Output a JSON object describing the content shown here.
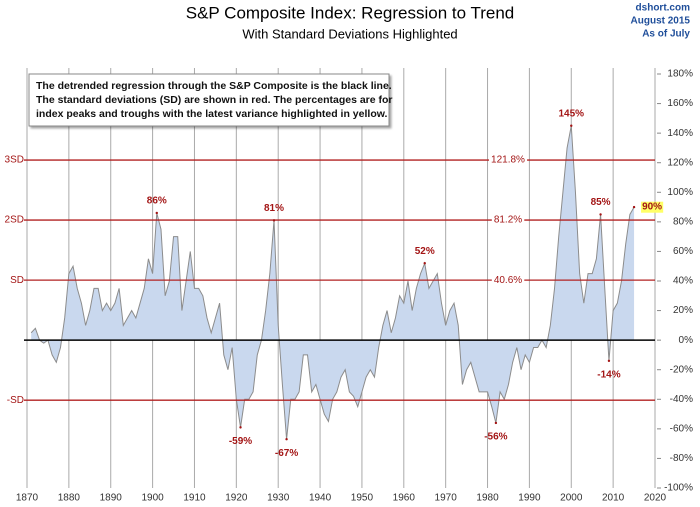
{
  "chart_data": {
    "type": "area",
    "title": "S&P Composite Index: Regression to Trend",
    "subtitle": "With Standard Deviations Highlighted",
    "source": [
      "dshort.com",
      "August 2015",
      "As of July"
    ],
    "note": [
      "The detrended regression through the S&P Composite is the black line.",
      "The standard deviations (SD) are shown in red.  The percentages are for",
      "index peaks and troughs with the latest variance highlighted in yellow."
    ],
    "color": "#c9d8ee",
    "line_color": "#8c8c8c",
    "x": [
      1871,
      1872,
      1873,
      1874,
      1875,
      1876,
      1877,
      1878,
      1879,
      1880,
      1881,
      1882,
      1883,
      1884,
      1885,
      1886,
      1887,
      1888,
      1889,
      1890,
      1891,
      1892,
      1893,
      1894,
      1895,
      1896,
      1897,
      1898,
      1899,
      1900,
      1901,
      1902,
      1903,
      1904,
      1905,
      1906,
      1907,
      1908,
      1909,
      1910,
      1911,
      1912,
      1913,
      1914,
      1915,
      1916,
      1917,
      1918,
      1919,
      1920,
      1921,
      1922,
      1923,
      1924,
      1925,
      1926,
      1927,
      1928,
      1929,
      1930,
      1931,
      1932,
      1933,
      1934,
      1935,
      1936,
      1937,
      1938,
      1939,
      1940,
      1941,
      1942,
      1943,
      1944,
      1945,
      1946,
      1947,
      1948,
      1949,
      1950,
      1951,
      1952,
      1953,
      1954,
      1955,
      1956,
      1957,
      1958,
      1959,
      1960,
      1961,
      1962,
      1963,
      1964,
      1965,
      1966,
      1967,
      1968,
      1969,
      1970,
      1971,
      1972,
      1973,
      1974,
      1975,
      1976,
      1977,
      1978,
      1979,
      1980,
      1981,
      1982,
      1983,
      1984,
      1985,
      1986,
      1987,
      1988,
      1989,
      1990,
      1991,
      1992,
      1993,
      1994,
      1995,
      1996,
      1997,
      1998,
      1999,
      2000,
      2001,
      2002,
      2003,
      2004,
      2005,
      2006,
      2007,
      2008,
      2009,
      2010,
      2011,
      2012,
      2013,
      2014,
      2015
    ],
    "values": [
      5,
      8,
      0,
      -2,
      0,
      -10,
      -15,
      -5,
      15,
      45,
      50,
      35,
      25,
      10,
      20,
      35,
      35,
      20,
      25,
      20,
      25,
      35,
      10,
      15,
      20,
      15,
      25,
      35,
      55,
      45,
      86,
      75,
      30,
      40,
      70,
      70,
      20,
      40,
      60,
      35,
      35,
      30,
      15,
      5,
      15,
      25,
      -10,
      -20,
      -5,
      -40,
      -59,
      -40,
      -40,
      -35,
      -10,
      0,
      20,
      45,
      81,
      10,
      -30,
      -67,
      -40,
      -40,
      -35,
      -10,
      -10,
      -35,
      -30,
      -40,
      -50,
      -55,
      -40,
      -35,
      -25,
      -20,
      -35,
      -38,
      -45,
      -35,
      -25,
      -20,
      -25,
      -5,
      10,
      20,
      5,
      15,
      30,
      25,
      40,
      20,
      35,
      45,
      52,
      35,
      40,
      45,
      25,
      10,
      20,
      25,
      10,
      -30,
      -20,
      -15,
      -25,
      -35,
      -35,
      -35,
      -45,
      -56,
      -35,
      -40,
      -30,
      -15,
      -5,
      -20,
      -10,
      -15,
      -5,
      -5,
      0,
      -5,
      10,
      35,
      70,
      100,
      130,
      145,
      100,
      45,
      25,
      45,
      45,
      55,
      85,
      35,
      -14,
      20,
      25,
      40,
      65,
      85,
      90
    ],
    "xlim": [
      1870,
      2020
    ],
    "xticks": [
      1870,
      1880,
      1890,
      1900,
      1910,
      1920,
      1930,
      1940,
      1950,
      1960,
      1970,
      1980,
      1990,
      2000,
      2010,
      2020
    ],
    "ylim": [
      -100,
      180
    ],
    "yticks": [
      {
        "value": 180,
        "label": "180%"
      },
      {
        "value": 160,
        "label": "160%"
      },
      {
        "value": 140,
        "label": "140%"
      },
      {
        "value": 120,
        "label": "120%"
      },
      {
        "value": 100,
        "label": "100%"
      },
      {
        "value": 80,
        "label": "80%"
      },
      {
        "value": 60,
        "label": "60%"
      },
      {
        "value": 40,
        "label": "40%"
      },
      {
        "value": 20,
        "label": "20%"
      },
      {
        "value": 0,
        "label": "0%"
      },
      {
        "value": -20,
        "label": "-20%"
      },
      {
        "value": -40,
        "label": "-40%"
      },
      {
        "value": -60,
        "label": "-60%"
      },
      {
        "value": -80,
        "label": "-80%"
      },
      {
        "value": -100,
        "label": "-100%"
      }
    ],
    "reference_lines": [
      {
        "value": 121.8,
        "label": "3SD",
        "value_label": "121.8%"
      },
      {
        "value": 81.2,
        "label": "2SD",
        "value_label": "81.2%"
      },
      {
        "value": 40.6,
        "label": "SD",
        "value_label": "40.6%"
      },
      {
        "value": -40.6,
        "label": "-SD"
      }
    ],
    "annotations": [
      {
        "x": 1901,
        "value": 86,
        "label": "86%"
      },
      {
        "x": 1929,
        "value": 81,
        "label": "81%"
      },
      {
        "x": 1965,
        "value": 52,
        "label": "52%"
      },
      {
        "x": 2000,
        "value": 145,
        "label": "145%"
      },
      {
        "x": 2007,
        "value": 85,
        "label": "85%"
      },
      {
        "x": 2015,
        "value": 90,
        "label": "90%",
        "highlight": "#ffff66"
      },
      {
        "x": 1921,
        "value": -59,
        "label": "-59%"
      },
      {
        "x": 1932,
        "value": -67,
        "label": "-67%"
      },
      {
        "x": 1982,
        "value": -56,
        "label": "-56%"
      },
      {
        "x": 2009,
        "value": -14,
        "label": "-14%"
      }
    ]
  }
}
